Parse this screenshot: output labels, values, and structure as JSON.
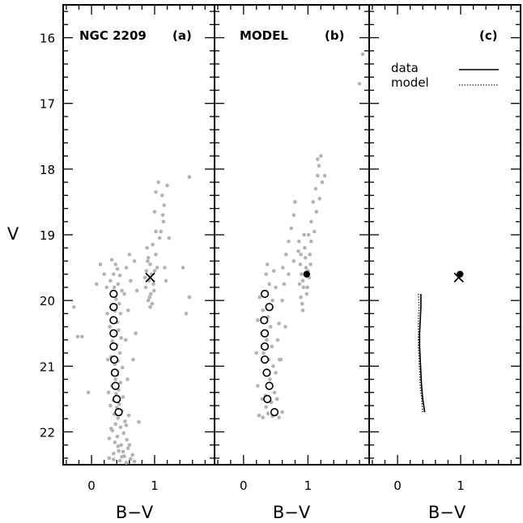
{
  "chart_data": [
    {
      "panel": "a",
      "type": "scatter",
      "panel_label": "(a)",
      "title": "NGC 2209",
      "xlabel": "B−V",
      "ylabel": "V",
      "xlim": [
        -0.45,
        1.95
      ],
      "ylim": [
        22.5,
        15.5
      ],
      "xticks": [
        0,
        1
      ],
      "yticks": [
        16,
        17,
        18,
        19,
        20,
        21,
        22
      ],
      "grey_points": [
        [
          0.32,
          19.38
        ],
        [
          0.38,
          19.45
        ],
        [
          0.41,
          19.52
        ],
        [
          0.35,
          19.6
        ],
        [
          0.45,
          19.62
        ],
        [
          0.3,
          19.7
        ],
        [
          0.42,
          19.75
        ],
        [
          0.36,
          19.8
        ],
        [
          0.48,
          19.85
        ],
        [
          0.33,
          19.92
        ],
        [
          0.39,
          19.98
        ],
        [
          0.44,
          20.05
        ],
        [
          0.31,
          20.1
        ],
        [
          0.37,
          20.16
        ],
        [
          0.46,
          20.2
        ],
        [
          0.34,
          20.27
        ],
        [
          0.41,
          20.33
        ],
        [
          0.29,
          20.4
        ],
        [
          0.43,
          20.45
        ],
        [
          0.38,
          20.5
        ],
        [
          0.47,
          20.57
        ],
        [
          0.33,
          20.62
        ],
        [
          0.4,
          20.68
        ],
        [
          0.36,
          20.74
        ],
        [
          0.45,
          20.8
        ],
        [
          0.31,
          20.86
        ],
        [
          0.42,
          20.92
        ],
        [
          0.37,
          20.97
        ],
        [
          0.49,
          21.02
        ],
        [
          0.34,
          21.08
        ],
        [
          0.41,
          21.13
        ],
        [
          0.38,
          21.2
        ],
        [
          0.46,
          21.25
        ],
        [
          0.32,
          21.3
        ],
        [
          0.43,
          21.36
        ],
        [
          0.39,
          21.42
        ],
        [
          0.5,
          21.47
        ],
        [
          0.35,
          21.52
        ],
        [
          0.44,
          21.58
        ],
        [
          0.4,
          21.63
        ],
        [
          0.48,
          21.68
        ],
        [
          0.36,
          21.73
        ],
        [
          0.42,
          21.79
        ],
        [
          0.53,
          21.84
        ],
        [
          0.38,
          21.88
        ],
        [
          0.46,
          21.93
        ],
        [
          0.33,
          21.98
        ],
        [
          0.51,
          22.02
        ],
        [
          0.41,
          22.07
        ],
        [
          0.56,
          22.12
        ],
        [
          0.37,
          22.16
        ],
        [
          0.47,
          22.2
        ],
        [
          0.58,
          22.25
        ],
        [
          0.43,
          22.29
        ],
        [
          0.35,
          22.33
        ],
        [
          0.52,
          22.37
        ],
        [
          0.62,
          22.41
        ],
        [
          0.45,
          22.44
        ],
        [
          0.55,
          22.47
        ],
        [
          0.39,
          22.48
        ],
        [
          0.3,
          21.6
        ],
        [
          0.55,
          21.9
        ],
        [
          0.6,
          22.2
        ],
        [
          0.28,
          22.1
        ],
        [
          0.65,
          22.35
        ],
        [
          0.5,
          22.3
        ],
        [
          0.27,
          21.4
        ],
        [
          0.59,
          21.75
        ],
        [
          0.26,
          20.9
        ],
        [
          0.54,
          20.6
        ],
        [
          0.25,
          20.2
        ],
        [
          0.57,
          21.2
        ],
        [
          0.24,
          19.8
        ],
        [
          0.52,
          19.9
        ],
        [
          0.28,
          22.4
        ],
        [
          0.68,
          22.45
        ],
        [
          0.35,
          22.42
        ],
        [
          0.48,
          22.38
        ],
        [
          0.42,
          22.22
        ],
        [
          0.31,
          21.95
        ],
        [
          0.14,
          19.45
        ],
        [
          0.2,
          19.6
        ],
        [
          0.08,
          19.75
        ],
        [
          0.55,
          19.5
        ],
        [
          0.62,
          19.7
        ],
        [
          0.68,
          19.4
        ],
        [
          0.72,
          19.85
        ],
        [
          0.6,
          19.3
        ],
        [
          -0.28,
          20.1
        ],
        [
          -0.15,
          20.55
        ],
        [
          -0.22,
          20.55
        ],
        [
          -0.05,
          21.4
        ],
        [
          0.58,
          20.15
        ],
        [
          0.66,
          20.9
        ],
        [
          0.75,
          21.85
        ],
        [
          0.7,
          20.5
        ],
        [
          0.88,
          19.2
        ],
        [
          0.9,
          19.35
        ],
        [
          0.93,
          19.45
        ],
        [
          0.87,
          19.55
        ],
        [
          0.95,
          19.6
        ],
        [
          0.91,
          19.7
        ],
        [
          0.98,
          19.75
        ],
        [
          0.86,
          19.8
        ],
        [
          0.94,
          19.9
        ],
        [
          1.0,
          19.55
        ],
        [
          0.92,
          19.95
        ],
        [
          0.96,
          20.05
        ],
        [
          0.89,
          19.4
        ],
        [
          1.02,
          19.3
        ],
        [
          0.97,
          19.15
        ],
        [
          0.85,
          19.65
        ],
        [
          0.99,
          19.85
        ],
        [
          0.93,
          20.1
        ],
        [
          1.04,
          19.5
        ],
        [
          0.9,
          20.0
        ],
        [
          1.06,
          18.2
        ],
        [
          1.02,
          18.35
        ],
        [
          1.15,
          18.55
        ],
        [
          1.13,
          18.7
        ],
        [
          1.12,
          18.4
        ],
        [
          1.2,
          18.25
        ],
        [
          1.0,
          18.65
        ],
        [
          1.1,
          18.95
        ],
        [
          1.08,
          19.05
        ],
        [
          1.16,
          19.5
        ],
        [
          1.18,
          19.7
        ],
        [
          1.55,
          18.12
        ],
        [
          1.45,
          19.5
        ],
        [
          1.55,
          19.95
        ],
        [
          1.5,
          20.2
        ],
        [
          1.23,
          19.05
        ],
        [
          1.14,
          18.8
        ],
        [
          1.02,
          18.95
        ]
      ],
      "circles": [
        [
          0.35,
          19.9
        ],
        [
          0.35,
          20.1
        ],
        [
          0.35,
          20.3
        ],
        [
          0.35,
          20.5
        ],
        [
          0.35,
          20.7
        ],
        [
          0.36,
          20.9
        ],
        [
          0.37,
          21.1
        ],
        [
          0.38,
          21.3
        ],
        [
          0.4,
          21.5
        ],
        [
          0.43,
          21.7
        ]
      ],
      "cross": [
        0.93,
        19.65
      ]
    },
    {
      "panel": "b",
      "type": "scatter",
      "panel_label": "(b)",
      "title": "MODEL",
      "xlabel": "B−V",
      "xlim": [
        -0.45,
        1.95
      ],
      "ylim": [
        22.5,
        15.5
      ],
      "xticks": [
        0,
        1
      ],
      "grey_points": [
        [
          0.35,
          19.6
        ],
        [
          0.4,
          19.75
        ],
        [
          0.32,
          19.9
        ],
        [
          0.45,
          20.0
        ],
        [
          0.3,
          20.15
        ],
        [
          0.38,
          20.25
        ],
        [
          0.42,
          20.4
        ],
        [
          0.28,
          20.5
        ],
        [
          0.36,
          20.6
        ],
        [
          0.44,
          20.7
        ],
        [
          0.31,
          20.8
        ],
        [
          0.39,
          20.9
        ],
        [
          0.46,
          21.0
        ],
        [
          0.33,
          21.1
        ],
        [
          0.41,
          21.2
        ],
        [
          0.37,
          21.3
        ],
        [
          0.48,
          21.4
        ],
        [
          0.29,
          21.5
        ],
        [
          0.43,
          21.55
        ],
        [
          0.35,
          21.62
        ],
        [
          0.5,
          21.68
        ],
        [
          0.38,
          21.72
        ],
        [
          0.45,
          21.76
        ],
        [
          0.3,
          21.78
        ],
        [
          0.55,
          21.78
        ],
        [
          0.24,
          21.75
        ],
        [
          0.6,
          21.7
        ],
        [
          0.52,
          21.5
        ],
        [
          0.22,
          21.3
        ],
        [
          0.5,
          21.1
        ],
        [
          0.56,
          20.9
        ],
        [
          0.2,
          20.8
        ],
        [
          0.53,
          20.6
        ],
        [
          0.22,
          20.3
        ],
        [
          0.55,
          20.35
        ],
        [
          0.25,
          19.95
        ],
        [
          0.5,
          19.8
        ],
        [
          0.47,
          19.55
        ],
        [
          0.37,
          19.45
        ],
        [
          0.34,
          21.45
        ],
        [
          0.61,
          19.5
        ],
        [
          0.66,
          19.3
        ],
        [
          0.7,
          19.1
        ],
        [
          0.74,
          18.9
        ],
        [
          0.78,
          18.7
        ],
        [
          0.8,
          18.5
        ],
        [
          0.6,
          20.0
        ],
        [
          0.65,
          20.4
        ],
        [
          0.58,
          20.9
        ],
        [
          0.63,
          19.75
        ],
        [
          0.7,
          19.6
        ],
        [
          0.78,
          19.4
        ],
        [
          0.85,
          19.25
        ],
        [
          0.88,
          19.45
        ],
        [
          0.9,
          19.6
        ],
        [
          0.93,
          19.8
        ],
        [
          0.89,
          19.95
        ],
        [
          0.96,
          19.35
        ],
        [
          1.0,
          19.55
        ],
        [
          0.92,
          19.7
        ],
        [
          0.98,
          19.9
        ],
        [
          1.02,
          19.65
        ],
        [
          0.95,
          19.2
        ],
        [
          0.87,
          19.75
        ],
        [
          1.04,
          19.45
        ],
        [
          0.91,
          20.05
        ],
        [
          0.97,
          19.5
        ],
        [
          0.99,
          19.8
        ],
        [
          1.03,
          19.3
        ],
        [
          1.05,
          18.8
        ],
        [
          1.08,
          18.5
        ],
        [
          1.12,
          18.3
        ],
        [
          1.15,
          18.1
        ],
        [
          1.18,
          18.45
        ],
        [
          1.13,
          18.65
        ],
        [
          1.1,
          18.95
        ],
        [
          1.2,
          17.8
        ],
        [
          1.17,
          17.95
        ],
        [
          1.22,
          18.2
        ],
        [
          1.26,
          18.1
        ],
        [
          1.85,
          16.25
        ],
        [
          1.8,
          16.7
        ],
        [
          1.15,
          17.85
        ],
        [
          1.05,
          19.1
        ],
        [
          0.94,
          19.0
        ],
        [
          0.86,
          19.1
        ],
        [
          0.92,
          20.15
        ],
        [
          0.89,
          19.3
        ],
        [
          1.01,
          19.0
        ]
      ],
      "circles": [
        [
          0.33,
          19.9
        ],
        [
          0.4,
          20.1
        ],
        [
          0.32,
          20.3
        ],
        [
          0.33,
          20.5
        ],
        [
          0.33,
          20.7
        ],
        [
          0.33,
          20.9
        ],
        [
          0.36,
          21.1
        ],
        [
          0.4,
          21.3
        ],
        [
          0.37,
          21.5
        ],
        [
          0.48,
          21.7
        ]
      ],
      "filled_circle": [
        0.98,
        19.6
      ]
    },
    {
      "panel": "c",
      "type": "line",
      "panel_label": "(c)",
      "xlabel": "B−V",
      "xlim": [
        -0.45,
        1.95
      ],
      "ylim": [
        22.5,
        15.5
      ],
      "xticks": [
        0,
        1
      ],
      "legend": {
        "placement": "top-right",
        "entries": [
          "data",
          "model"
        ]
      },
      "series": [
        {
          "name": "data",
          "style": "solid",
          "points": [
            [
              0.37,
              19.9
            ],
            [
              0.37,
              20.1
            ],
            [
              0.36,
              20.3
            ],
            [
              0.35,
              20.5
            ],
            [
              0.35,
              20.7
            ],
            [
              0.36,
              20.9
            ],
            [
              0.37,
              21.1
            ],
            [
              0.38,
              21.3
            ],
            [
              0.4,
              21.5
            ],
            [
              0.43,
              21.7
            ]
          ]
        },
        {
          "name": "model",
          "style": "dotted",
          "points": [
            [
              0.33,
              19.9
            ],
            [
              0.34,
              20.1
            ],
            [
              0.33,
              20.3
            ],
            [
              0.33,
              20.5
            ],
            [
              0.33,
              20.7
            ],
            [
              0.34,
              20.9
            ],
            [
              0.35,
              21.1
            ],
            [
              0.36,
              21.3
            ],
            [
              0.38,
              21.5
            ],
            [
              0.4,
              21.7
            ]
          ]
        }
      ],
      "cross": [
        0.97,
        19.65
      ],
      "filled_circle": [
        0.99,
        19.6
      ]
    }
  ],
  "colors": {
    "points": "#b3b3b3",
    "ink": "#000000"
  }
}
